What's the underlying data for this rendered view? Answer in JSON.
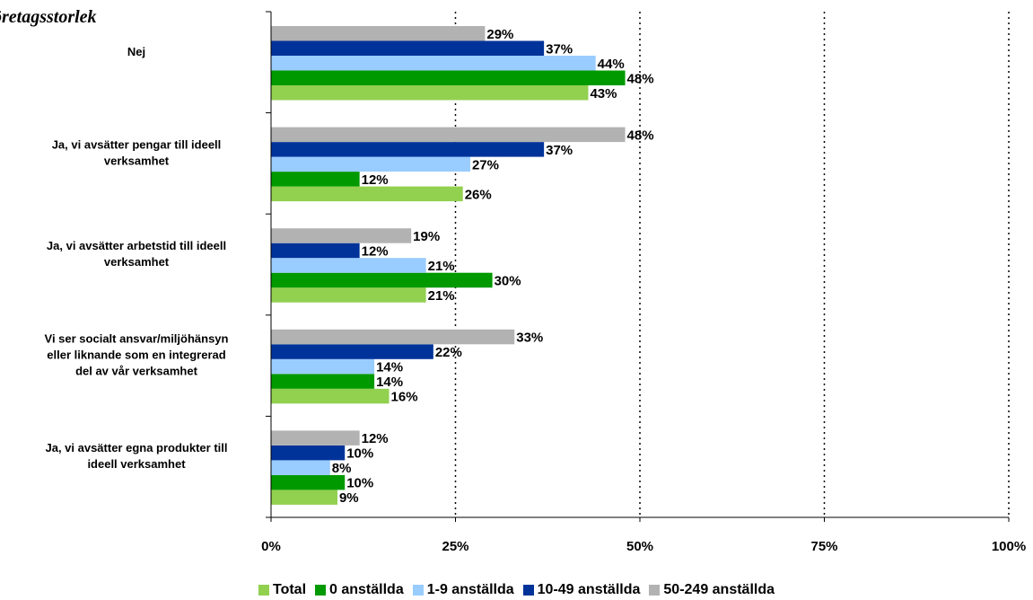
{
  "chart_data": {
    "type": "bar",
    "orientation": "horizontal",
    "title": "öretagsstorlek",
    "categories": [
      "Nej",
      "Ja, vi avsätter pengar till ideell verksamhet",
      "Ja, vi avsätter arbetstid till ideell verksamhet",
      "Vi ser socialt ansvar/miljöhänsyn eller liknande som en integrerad del av vår verksamhet",
      "Ja, vi avsätter egna produkter till ideell verksamhet"
    ],
    "category_lines": [
      [
        "Nej"
      ],
      [
        "Ja, vi avsätter pengar till ideell",
        "verksamhet"
      ],
      [
        "Ja, vi avsätter arbetstid till ideell",
        "verksamhet"
      ],
      [
        "Vi ser socialt ansvar/miljöhänsyn",
        "eller liknande som en integrerad",
        "del av vår verksamhet"
      ],
      [
        "Ja, vi avsätter egna produkter till",
        "ideell verksamhet"
      ]
    ],
    "series": [
      {
        "name": "Total",
        "color": "#92d050",
        "values": [
          43,
          26,
          21,
          16,
          9
        ]
      },
      {
        "name": "0 anställda",
        "color": "#009900",
        "values": [
          48,
          12,
          30,
          14,
          10
        ]
      },
      {
        "name": "1-9 anställda",
        "color": "#99ccff",
        "values": [
          44,
          27,
          21,
          14,
          8
        ]
      },
      {
        "name": "10-49 anställda",
        "color": "#003399",
        "values": [
          37,
          37,
          12,
          22,
          10
        ]
      },
      {
        "name": "50-249 anställda",
        "color": "#b2b2b2",
        "values": [
          29,
          48,
          19,
          33,
          12
        ]
      }
    ],
    "value_suffix": "%",
    "xlim": [
      0,
      100
    ],
    "xticks": [
      "0%",
      "25%",
      "50%",
      "75%",
      "100%"
    ],
    "xtick_values": [
      0,
      25,
      50,
      75,
      100
    ],
    "grid": "vertical dotted",
    "legend_position": "bottom"
  }
}
